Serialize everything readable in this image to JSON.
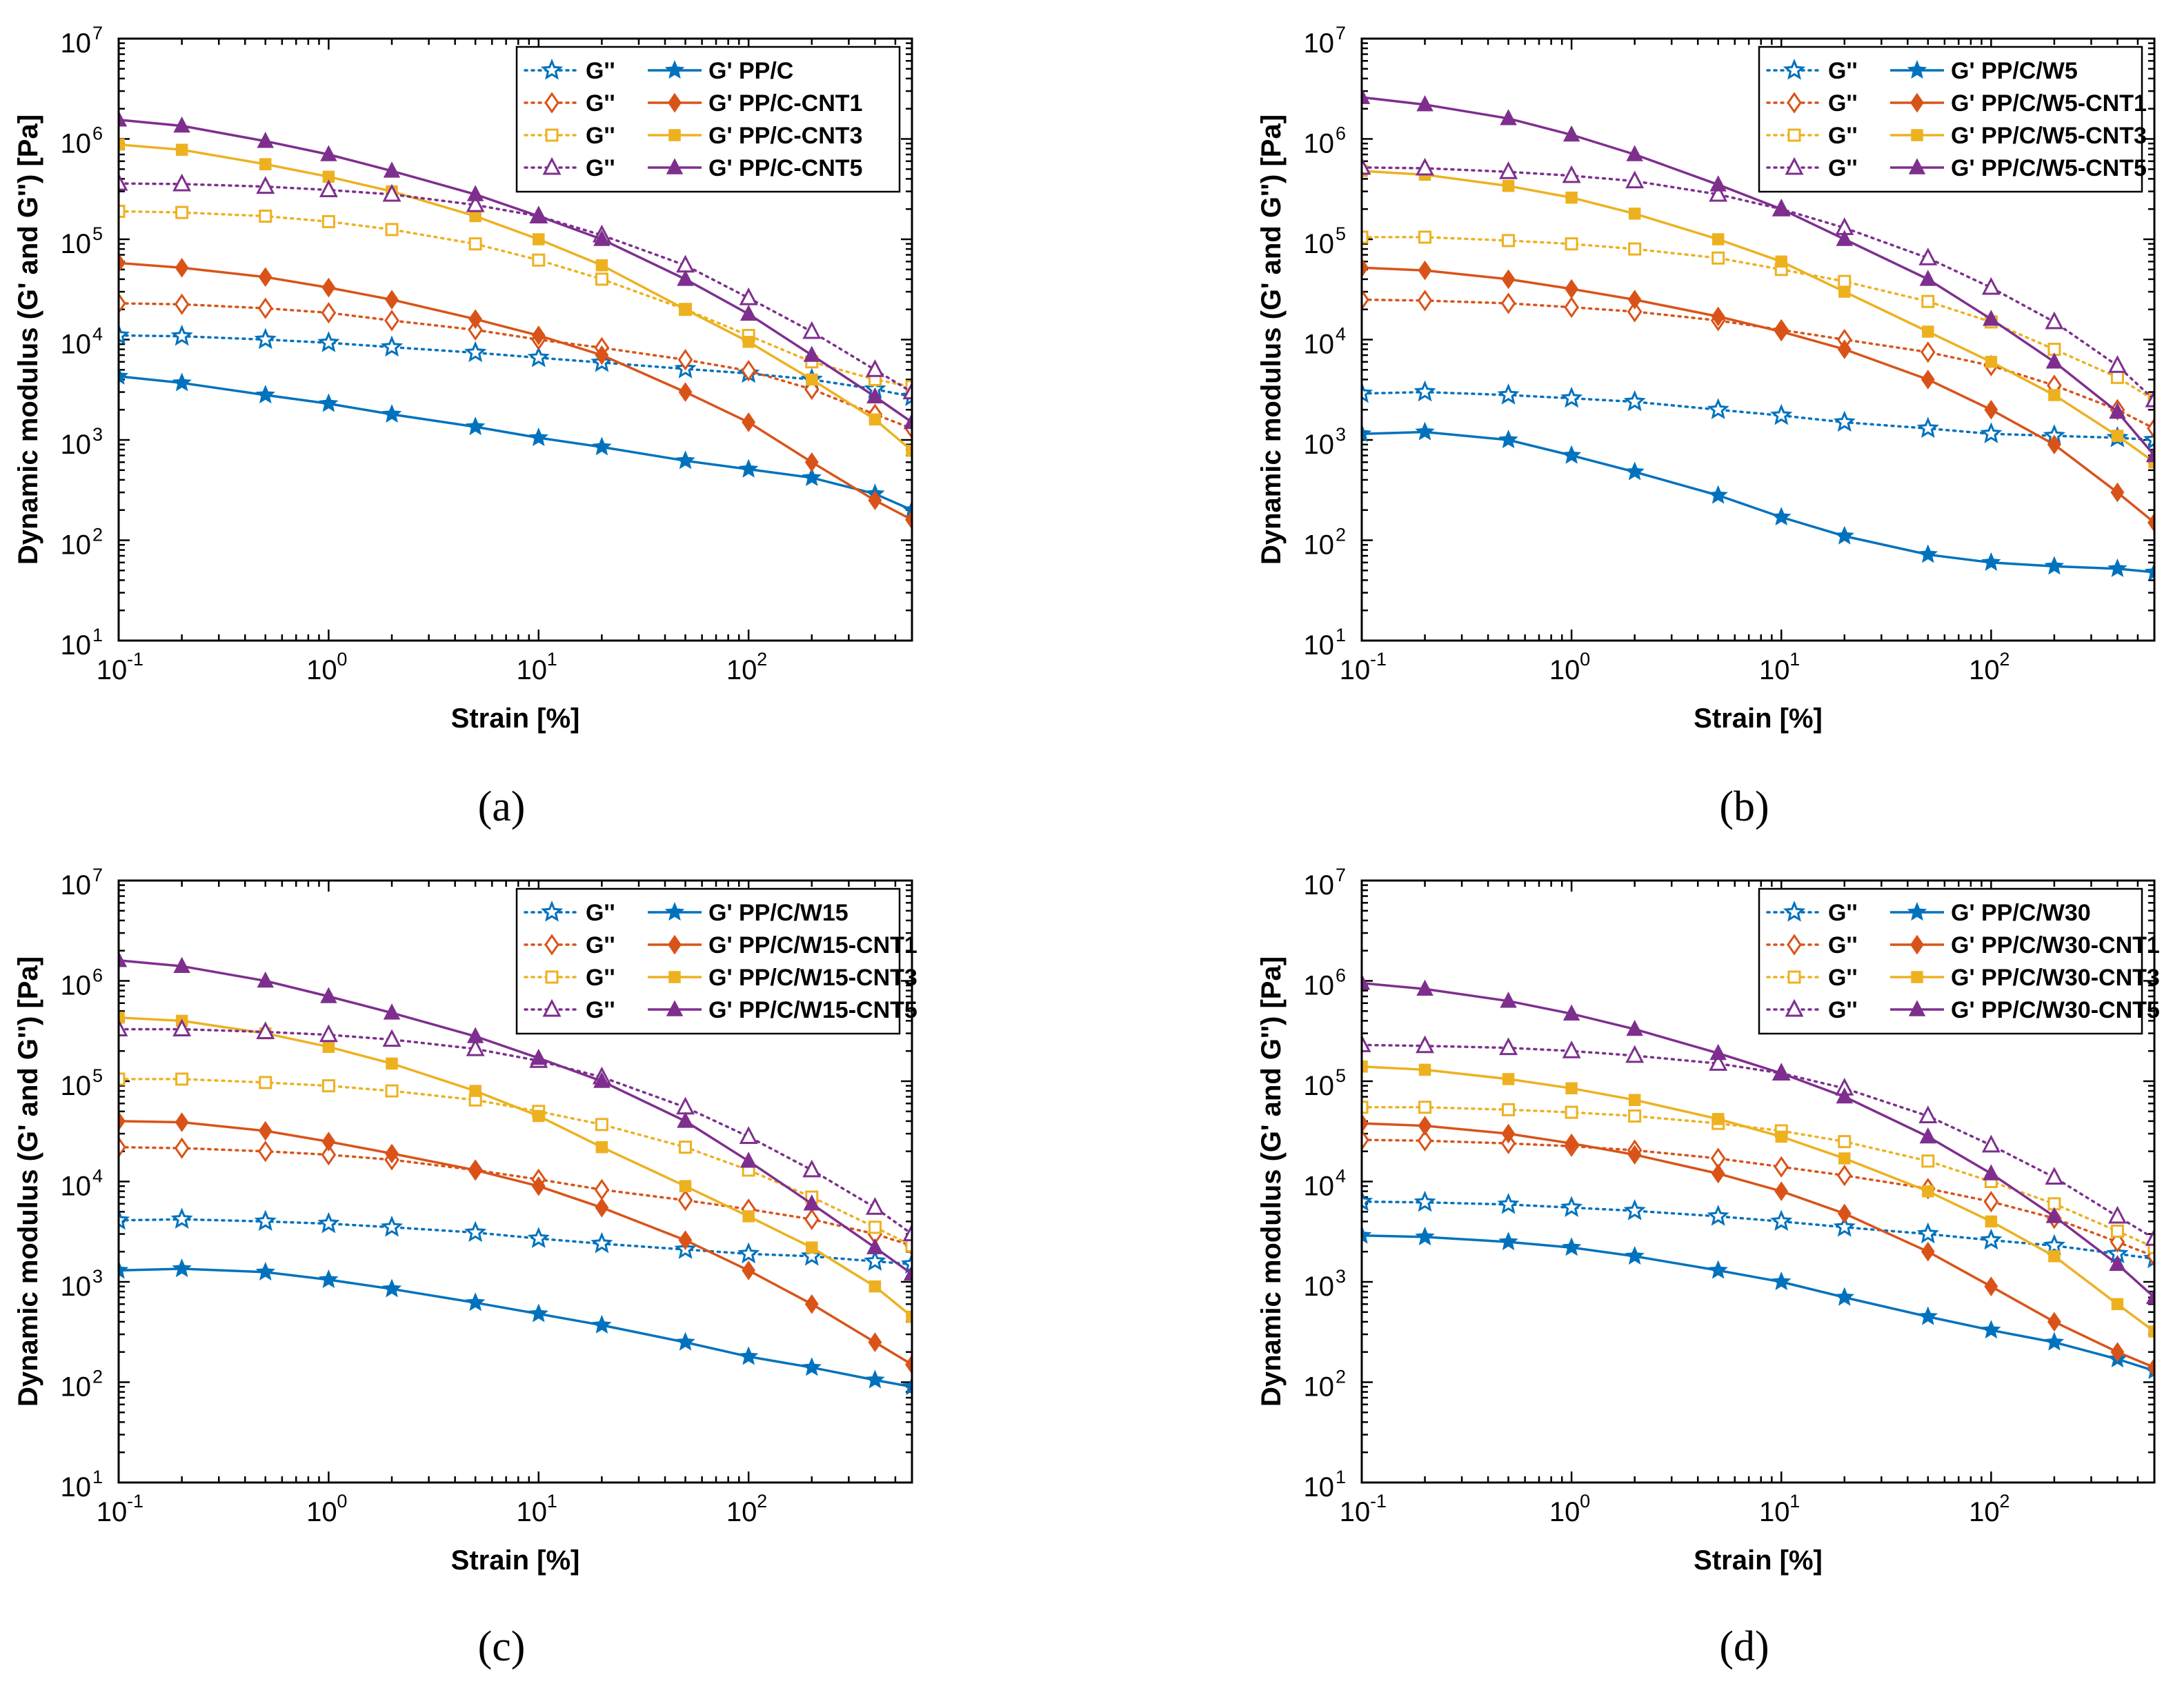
{
  "chart_data": [
    {
      "type": "line",
      "caption_letter": "a",
      "xlabel": "Strain [%]",
      "ylabel": "Dynamic modulus (G' and G'') [Pa]",
      "xscale": "log",
      "yscale": "log",
      "xlim": [
        0.1,
        600
      ],
      "ylim": [
        10,
        10000000
      ],
      "xticks": [
        "10",
        "10",
        "10",
        "10"
      ],
      "xtick_exps": [
        "-1",
        "0",
        "1",
        "2"
      ],
      "yticks": [
        "10",
        "10",
        "10",
        "10",
        "10",
        "10",
        "10"
      ],
      "ytick_exps": [
        "1",
        "2",
        "3",
        "4",
        "5",
        "6",
        "7"
      ],
      "legend_position": "top-right",
      "gpp_label": "G''",
      "x": [
        0.1,
        0.2,
        0.5,
        1,
        2,
        5,
        10,
        20,
        50,
        100,
        200,
        400,
        600
      ],
      "series": [
        {
          "name": "PP/C",
          "color": "#0072bd",
          "marker": "star",
          "g_prime_label": "G' PP/C",
          "g_prime": [
            4300,
            3700,
            2800,
            2300,
            1800,
            1350,
            1050,
            850,
            620,
            510,
            420,
            290,
            200
          ],
          "g_double_prime": [
            11000,
            10800,
            10000,
            9300,
            8400,
            7400,
            6600,
            5900,
            5100,
            4600,
            4000,
            3200,
            2700
          ]
        },
        {
          "name": "PP/C-CNT1",
          "color": "#d95319",
          "marker": "diamond",
          "g_prime_label": "G' PP/C-CNT1",
          "g_prime": [
            58000,
            52000,
            42000,
            33000,
            25000,
            16000,
            11000,
            7000,
            3000,
            1500,
            600,
            250,
            160
          ],
          "g_double_prime": [
            23000,
            22500,
            20500,
            18500,
            15500,
            12500,
            10000,
            8300,
            6300,
            4900,
            3200,
            1800,
            1300
          ]
        },
        {
          "name": "PP/C-CNT3",
          "color": "#edb120",
          "marker": "square",
          "g_prime_label": "G' PP/C-CNT3",
          "g_prime": [
            880000,
            780000,
            560000,
            420000,
            300000,
            170000,
            100000,
            55000,
            20000,
            9500,
            4000,
            1600,
            780
          ]
        },
        {
          "name": "PP/C-CNT5",
          "color": "#7e2f8e",
          "marker": "triangle",
          "g_prime_label": "G' PP/C-CNT5",
          "g_prime": [
            1550000,
            1350000,
            950000,
            700000,
            480000,
            280000,
            170000,
            100000,
            40000,
            18000,
            7000,
            2700,
            1500
          ],
          "g_double_prime": [
            360000,
            355000,
            335000,
            310000,
            280000,
            220000,
            170000,
            110000,
            55000,
            26000,
            12000,
            5000,
            3000
          ]
        }
      ],
      "gdp_cnt3": [
        190000,
        185000,
        170000,
        150000,
        125000,
        90000,
        62000,
        40000,
        20000,
        11000,
        6000,
        4000,
        3400
      ]
    },
    {
      "type": "line",
      "caption_letter": "b",
      "xlabel": "Strain [%]",
      "ylabel": "Dynamic modulus (G' and G'') [Pa]",
      "xscale": "log",
      "yscale": "log",
      "xlim": [
        0.1,
        600
      ],
      "ylim": [
        10,
        10000000
      ],
      "xticks": [
        "10",
        "10",
        "10",
        "10"
      ],
      "xtick_exps": [
        "-1",
        "0",
        "1",
        "2"
      ],
      "yticks": [
        "10",
        "10",
        "10",
        "10",
        "10",
        "10",
        "10"
      ],
      "ytick_exps": [
        "1",
        "2",
        "3",
        "4",
        "5",
        "6",
        "7"
      ],
      "legend_position": "top-right",
      "gpp_label": "G''",
      "x": [
        0.1,
        0.2,
        0.5,
        1,
        2,
        5,
        10,
        20,
        50,
        100,
        200,
        400,
        600
      ],
      "series": [
        {
          "name": "PP/C/W5",
          "color": "#0072bd",
          "marker": "star",
          "g_prime_label": "G' PP/C/W5",
          "g_prime": [
            1150,
            1200,
            1000,
            700,
            480,
            280,
            170,
            110,
            72,
            60,
            55,
            52,
            48
          ],
          "g_double_prime": [
            2900,
            3000,
            2800,
            2600,
            2400,
            2000,
            1750,
            1500,
            1300,
            1150,
            1100,
            1050,
            1000
          ]
        },
        {
          "name": "PP/C/W5-CNT1",
          "color": "#d95319",
          "marker": "diamond",
          "g_prime_label": "G' PP/C/W5-CNT1",
          "g_prime": [
            52000,
            49000,
            40000,
            32000,
            25000,
            17000,
            12000,
            8000,
            4000,
            2000,
            900,
            300,
            150
          ],
          "g_double_prime": [
            25000,
            24500,
            23000,
            21000,
            19000,
            15500,
            12500,
            10000,
            7500,
            5500,
            3500,
            2000,
            1300
          ]
        },
        {
          "name": "PP/C/W5-CNT3",
          "color": "#edb120",
          "marker": "square",
          "g_prime_label": "G' PP/C/W5-CNT3",
          "g_prime": [
            480000,
            440000,
            340000,
            260000,
            180000,
            100000,
            60000,
            30000,
            12000,
            6000,
            2800,
            1100,
            600
          ]
        },
        {
          "name": "PP/C/W5-CNT5",
          "color": "#7e2f8e",
          "marker": "triangle",
          "g_prime_label": "G' PP/C/W5-CNT5",
          "g_prime": [
            2600000,
            2200000,
            1600000,
            1100000,
            700000,
            350000,
            200000,
            100000,
            40000,
            16000,
            6000,
            1900,
            700
          ],
          "g_double_prime": [
            520000,
            510000,
            470000,
            430000,
            380000,
            280000,
            200000,
            130000,
            65000,
            33000,
            15000,
            5500,
            2500
          ]
        }
      ],
      "gdp_cnt3": [
        105000,
        105000,
        97000,
        90000,
        80000,
        65000,
        50000,
        38000,
        24000,
        15000,
        8000,
        4200,
        2500
      ]
    },
    {
      "type": "line",
      "caption_letter": "c",
      "xlabel": "Strain [%]",
      "ylabel": "Dynamic modulus (G' and G'') [Pa]",
      "xscale": "log",
      "yscale": "log",
      "xlim": [
        0.1,
        600
      ],
      "ylim": [
        10,
        10000000
      ],
      "xticks": [
        "10",
        "10",
        "10",
        "10"
      ],
      "xtick_exps": [
        "-1",
        "0",
        "1",
        "2"
      ],
      "yticks": [
        "10",
        "10",
        "10",
        "10",
        "10",
        "10",
        "10"
      ],
      "ytick_exps": [
        "1",
        "2",
        "3",
        "4",
        "5",
        "6",
        "7"
      ],
      "legend_position": "top-right",
      "gpp_label": "G''",
      "x": [
        0.1,
        0.2,
        0.5,
        1,
        2,
        5,
        10,
        20,
        50,
        100,
        200,
        400,
        600
      ],
      "series": [
        {
          "name": "PP/C/W15",
          "color": "#0072bd",
          "marker": "star",
          "g_prime_label": "G' PP/C/W15",
          "g_prime": [
            1300,
            1350,
            1250,
            1050,
            850,
            620,
            480,
            370,
            250,
            180,
            140,
            105,
            90
          ],
          "g_double_prime": [
            4100,
            4200,
            4000,
            3800,
            3500,
            3100,
            2700,
            2400,
            2100,
            1900,
            1800,
            1600,
            1500
          ]
        },
        {
          "name": "PP/C/W15-CNT1",
          "color": "#d95319",
          "marker": "diamond",
          "g_prime_label": "G' PP/C/W15-CNT1",
          "g_prime": [
            40000,
            39000,
            32000,
            25000,
            19000,
            13000,
            9000,
            5500,
            2600,
            1300,
            600,
            250,
            150
          ],
          "g_double_prime": [
            22000,
            21500,
            20000,
            18500,
            16500,
            13000,
            10500,
            8300,
            6500,
            5300,
            4200,
            3000,
            2300
          ]
        },
        {
          "name": "PP/C/W15-CNT3",
          "color": "#edb120",
          "marker": "square",
          "g_prime_label": "G' PP/C/W15-CNT3",
          "g_prime": [
            430000,
            400000,
            300000,
            220000,
            150000,
            80000,
            45000,
            22000,
            9000,
            4500,
            2200,
            900,
            450
          ]
        },
        {
          "name": "PP/C/W15-CNT5",
          "color": "#7e2f8e",
          "marker": "triangle",
          "g_prime_label": "G' PP/C/W15-CNT5",
          "g_prime": [
            1600000,
            1400000,
            1000000,
            700000,
            480000,
            280000,
            170000,
            100000,
            40000,
            16000,
            6000,
            2200,
            1200
          ],
          "g_double_prime": [
            330000,
            330000,
            310000,
            290000,
            260000,
            210000,
            160000,
            110000,
            55000,
            28000,
            13000,
            5500,
            3000
          ]
        }
      ],
      "gdp_cnt3": [
        105000,
        105000,
        97000,
        90000,
        80000,
        65000,
        50000,
        37000,
        22000,
        13000,
        7000,
        3500,
        2300
      ]
    },
    {
      "type": "line",
      "caption_letter": "d",
      "xlabel": "Strain [%]",
      "ylabel": "Dynamic modulus (G' and G'') [Pa]",
      "xscale": "log",
      "yscale": "log",
      "xlim": [
        0.1,
        600
      ],
      "ylim": [
        10,
        10000000
      ],
      "xticks": [
        "10",
        "10",
        "10",
        "10"
      ],
      "xtick_exps": [
        "-1",
        "0",
        "1",
        "2"
      ],
      "yticks": [
        "10",
        "10",
        "10",
        "10",
        "10",
        "10",
        "10"
      ],
      "ytick_exps": [
        "1",
        "2",
        "3",
        "4",
        "5",
        "6",
        "7"
      ],
      "legend_position": "top-right",
      "gpp_label": "G''",
      "x": [
        0.1,
        0.2,
        0.5,
        1,
        2,
        5,
        10,
        20,
        50,
        100,
        200,
        400,
        600
      ],
      "series": [
        {
          "name": "PP/C/W30",
          "color": "#0072bd",
          "marker": "star",
          "g_prime_label": "G' PP/C/W30",
          "g_prime": [
            2900,
            2800,
            2500,
            2200,
            1800,
            1300,
            1000,
            700,
            450,
            330,
            250,
            170,
            130
          ],
          "g_double_prime": [
            6300,
            6200,
            5900,
            5500,
            5100,
            4500,
            4000,
            3500,
            3000,
            2600,
            2300,
            1900,
            1700
          ]
        },
        {
          "name": "PP/C/W30-CNT1",
          "color": "#d95319",
          "marker": "diamond",
          "g_prime_label": "G' PP/C/W30-CNT1",
          "g_prime": [
            38000,
            36000,
            30000,
            24000,
            18500,
            12000,
            8000,
            4800,
            2000,
            900,
            400,
            200,
            140
          ],
          "g_double_prime": [
            26000,
            25500,
            24000,
            22500,
            20500,
            17000,
            14000,
            11500,
            8500,
            6300,
            4300,
            2500,
            1800
          ]
        },
        {
          "name": "PP/C/W30-CNT3",
          "color": "#edb120",
          "marker": "square",
          "g_prime_label": "G' PP/C/W30-CNT3",
          "g_prime": [
            140000,
            130000,
            105000,
            85000,
            65000,
            42000,
            28000,
            17000,
            8000,
            4000,
            1800,
            600,
            320
          ]
        },
        {
          "name": "PP/C/W30-CNT5",
          "color": "#7e2f8e",
          "marker": "triangle",
          "g_prime_label": "G' PP/C/W30-CNT5",
          "g_prime": [
            950000,
            830000,
            630000,
            470000,
            330000,
            190000,
            120000,
            70000,
            28000,
            12000,
            4500,
            1500,
            700
          ],
          "g_double_prime": [
            230000,
            225000,
            215000,
            200000,
            180000,
            150000,
            120000,
            85000,
            45000,
            23000,
            11000,
            4500,
            2700
          ]
        }
      ],
      "gdp_cnt3": [
        55000,
        55000,
        52000,
        49000,
        45000,
        38000,
        32000,
        25000,
        16000,
        10000,
        6000,
        3200,
        2200
      ]
    }
  ],
  "captions": [
    "(a)",
    "(b)",
    "(c)",
    "(d)"
  ]
}
